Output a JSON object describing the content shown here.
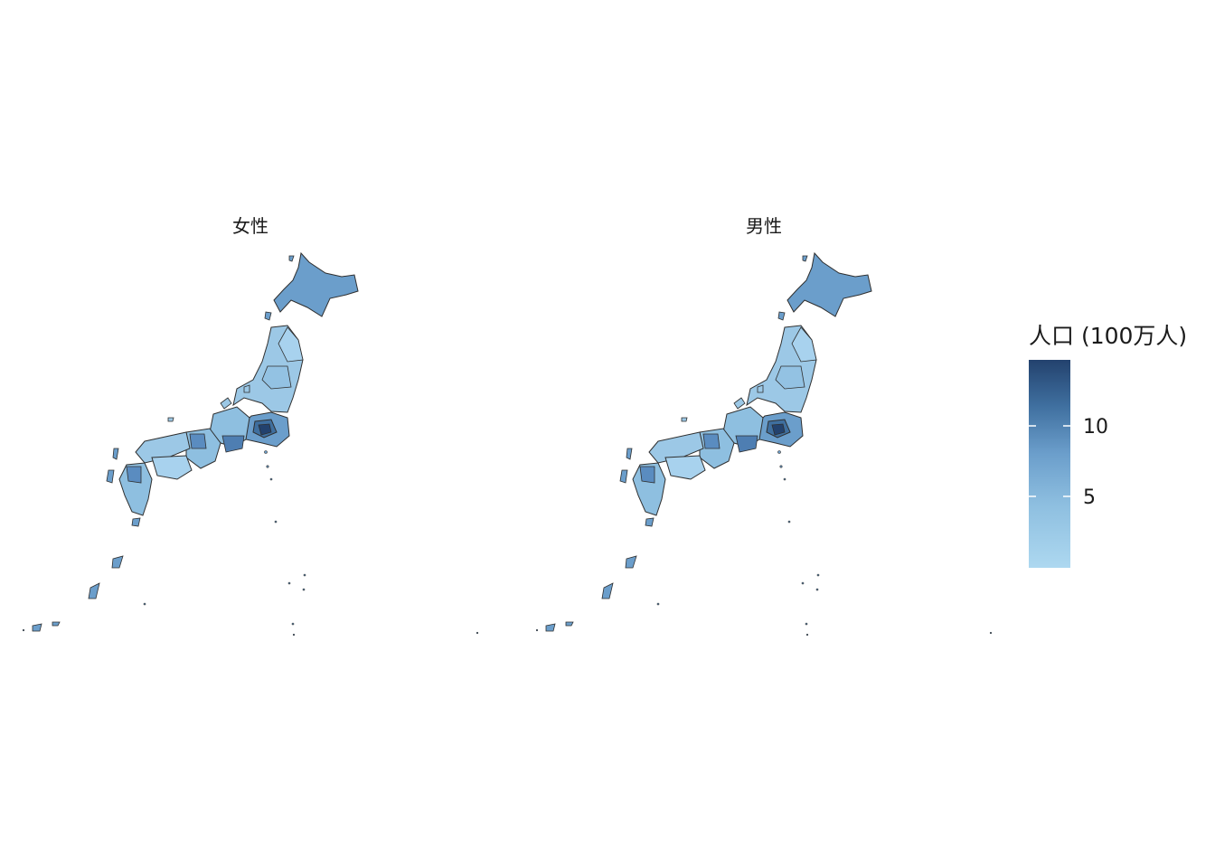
{
  "panels": [
    {
      "title": "女性"
    },
    {
      "title": "男性"
    }
  ],
  "legend": {
    "title": "人口 (100万人)",
    "ticks": [
      "10",
      "5"
    ],
    "color_low": "#ADD8F0",
    "color_high": "#23426E",
    "outline_color": "#2f2f2f"
  }
}
